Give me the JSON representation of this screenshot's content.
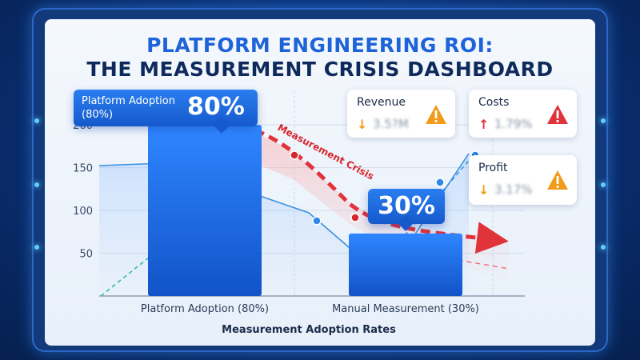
{
  "title": {
    "line1": "PLATFORM ENGINEERING ROI:",
    "line2": "THE MEASUREMENT CRISIS DASHBOARD"
  },
  "chart_data": {
    "type": "bar",
    "categories": [
      "Platform Adoption (80%)",
      "Manual Measurement (30%)"
    ],
    "values": [
      200,
      73
    ],
    "xlabel": "Measurement Adoption Rates",
    "ylabel": "",
    "yticks": [
      50,
      100,
      150,
      200
    ],
    "ylim": [
      0,
      230
    ],
    "bar_color": "#1f6ff0",
    "annotations": [
      {
        "text": "Measurement Crisis",
        "color": "#d8262c"
      }
    ],
    "callouts": [
      {
        "label": "Platform Adoption\n(80%)",
        "label_line1": "Platform Adoption",
        "label_line2": "(80%)",
        "value": "80%"
      },
      {
        "value": "30%"
      }
    ]
  },
  "kpis": [
    {
      "label": "Revenue",
      "trend": "down",
      "arrow": "↓",
      "arrow_color": "#f29a1a",
      "value": "3.5?M",
      "warn_color": "#f29a1a"
    },
    {
      "label": "Costs",
      "trend": "up",
      "arrow": "↑",
      "arrow_color": "#e0333a",
      "value": "1.79%",
      "warn_color": "#e0333a"
    },
    {
      "label": "Profit",
      "trend": "down",
      "arrow": "↓",
      "arrow_color": "#f29a1a",
      "value": "3.17%",
      "warn_color": "#f29a1a"
    }
  ]
}
